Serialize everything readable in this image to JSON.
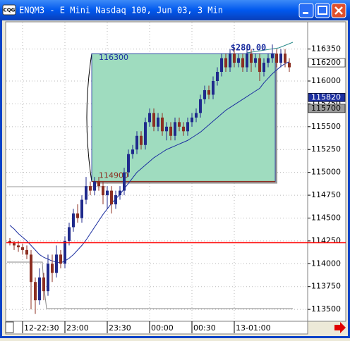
{
  "window": {
    "title": "ENQM3 - E Mini Nasdaq 100, Jun 03, 3 Min",
    "icon": "CQG"
  },
  "chart_data": {
    "type": "candlestick",
    "categories": [
      null,
      null,
      null,
      "12-22:30",
      null,
      null,
      null,
      null,
      null,
      null,
      null,
      null,
      null,
      "23:00",
      null,
      null,
      null,
      null,
      null,
      null,
      null,
      null,
      null,
      "23:30",
      null,
      null,
      null,
      null,
      null,
      null,
      null,
      null,
      null,
      "00:00",
      null,
      null,
      null,
      null,
      null,
      null,
      null,
      null,
      null,
      "00:30",
      null,
      null,
      null,
      null,
      null,
      null,
      null,
      null,
      null,
      "13-01:00",
      null,
      null,
      null,
      null,
      null,
      null,
      null,
      null,
      null,
      null,
      null,
      null,
      null
    ],
    "open": [
      114250,
      114230,
      114200,
      114180,
      114150,
      114100,
      113800,
      113600,
      113850,
      113700,
      114000,
      113900,
      114100,
      114000,
      114250,
      114400,
      114550,
      114500,
      114700,
      114850,
      114800,
      114900,
      114850,
      114750,
      114800,
      114650,
      114750,
      114800,
      115000,
      115200,
      115250,
      115400,
      115300,
      115550,
      115650,
      115500,
      115600,
      115450,
      115500,
      115400,
      115550,
      115500,
      115450,
      115550,
      115600,
      115650,
      115800,
      115900,
      115850,
      116000,
      116100,
      116250,
      116150,
      116300,
      116200,
      116250,
      116150,
      116300,
      116200,
      116250,
      116100,
      116200,
      116250,
      116300,
      116200,
      116300,
      116200
    ],
    "high": [
      114280,
      114250,
      114250,
      114220,
      114200,
      114150,
      113850,
      113950,
      113900,
      114100,
      114100,
      114200,
      114150,
      114300,
      114450,
      114600,
      114650,
      114750,
      114950,
      114900,
      114950,
      114950,
      114900,
      114850,
      114850,
      114800,
      114850,
      115050,
      115250,
      115300,
      115450,
      115450,
      115600,
      115700,
      115700,
      115650,
      115650,
      115550,
      115550,
      115600,
      115600,
      115550,
      115600,
      115650,
      115700,
      115850,
      115950,
      115950,
      116050,
      116150,
      116300,
      116300,
      116350,
      116350,
      116300,
      116300,
      116350,
      116350,
      116300,
      116300,
      116250,
      116300,
      116400,
      116350,
      116350,
      116350,
      116250
    ],
    "low": [
      114200,
      114150,
      114130,
      114100,
      114050,
      113500,
      113450,
      113550,
      113600,
      113650,
      113800,
      113850,
      113950,
      113950,
      114200,
      114350,
      114450,
      114450,
      114650,
      114750,
      114750,
      114800,
      114650,
      114600,
      114550,
      114600,
      114700,
      114750,
      114950,
      115150,
      115200,
      115250,
      115250,
      115500,
      115450,
      115450,
      115400,
      115350,
      115350,
      115350,
      115450,
      115400,
      115400,
      115500,
      115550,
      115600,
      115750,
      115800,
      115800,
      115950,
      116050,
      116100,
      116100,
      116150,
      116150,
      116100,
      116100,
      116100,
      116150,
      116000,
      116050,
      116150,
      116200,
      116150,
      116150,
      116150,
      116100
    ],
    "close": [
      114230,
      114200,
      114180,
      114150,
      114100,
      113800,
      113600,
      113850,
      113700,
      114000,
      113900,
      114100,
      114000,
      114250,
      114400,
      114550,
      114500,
      114700,
      114850,
      114800,
      114900,
      114850,
      114750,
      114800,
      114650,
      114750,
      114800,
      115000,
      115200,
      115250,
      115400,
      115300,
      115550,
      115650,
      115500,
      115600,
      115450,
      115500,
      115400,
      115550,
      115500,
      115450,
      115550,
      115600,
      115650,
      115800,
      115900,
      115850,
      116000,
      116100,
      116250,
      116150,
      116300,
      116200,
      116250,
      116150,
      116300,
      116200,
      116250,
      116100,
      116200,
      116250,
      116300,
      116200,
      116300,
      116200,
      116150
    ],
    "up_color": "#1f2a8c",
    "down_color": "#8c2f22",
    "moving_average": {
      "color": "#1c2fa0",
      "values": [
        114420,
        114380,
        114330,
        114290,
        114250,
        114200,
        114150,
        114100,
        114070,
        114050,
        114030,
        114020,
        114010,
        114030,
        114060,
        114100,
        114150,
        114200,
        114260,
        114330,
        114400,
        114470,
        114540,
        114600,
        114660,
        114710,
        114760,
        114820,
        114880,
        114940,
        115000,
        115040,
        115080,
        115120,
        115160,
        115190,
        115220,
        115250,
        115270,
        115290,
        115310,
        115330,
        115350,
        115380,
        115410,
        115440,
        115480,
        115520,
        115560,
        115600,
        115640,
        115680,
        115710,
        115740,
        115770,
        115800,
        115830,
        115860,
        115890,
        115920,
        115980,
        116030,
        116080,
        116120,
        116160,
        116190,
        116210
      ]
    },
    "ylim": [
      113370,
      116640
    ],
    "yticks": [
      113500,
      113750,
      114000,
      114250,
      114500,
      114750,
      115000,
      115250,
      115500,
      115750,
      116000,
      116350
    ],
    "price_markers": [
      {
        "value": 116200,
        "bg": "#ffffff",
        "fg": "#000000"
      },
      {
        "value": 115820,
        "bg": "#1c2fa0",
        "fg": "#ffffff"
      },
      {
        "value": 115700,
        "bg": "#9a9a9a",
        "fg": "#000000"
      }
    ],
    "grid": true,
    "level_line": {
      "value": 114230,
      "color": "#ff0000"
    },
    "rectangle": {
      "top": 116300,
      "bottom": 114900,
      "fill": "#9fdcbf",
      "profit": "$280.00"
    }
  }
}
